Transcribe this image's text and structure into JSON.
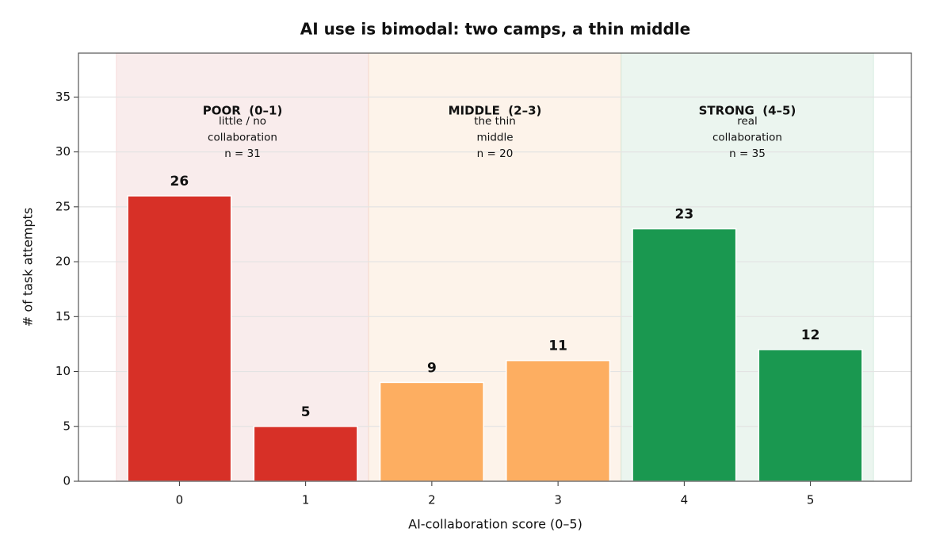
{
  "chart_data": {
    "type": "bar",
    "title": "AI use is bimodal: two camps, a thin middle",
    "xlabel": "AI-collaboration score (0–5)",
    "ylabel": "# of task attempts",
    "x": [
      0,
      1,
      2,
      3,
      4,
      5
    ],
    "values": [
      26,
      5,
      9,
      11,
      23,
      12
    ],
    "colors": [
      "#d73027",
      "#d73027",
      "#fdae61",
      "#fdae61",
      "#1a9850",
      "#1a9850"
    ],
    "xlim": [
      -0.8,
      5.8
    ],
    "xticks": [
      0,
      1,
      2,
      3,
      4,
      5
    ],
    "ylim": [
      0,
      39
    ],
    "yticks": [
      0,
      5,
      10,
      15,
      20,
      25,
      30,
      35
    ],
    "grid": true,
    "bands": [
      {
        "range": [
          -0.5,
          1.5
        ],
        "label": "POOR  (0–1)",
        "note": [
          "little / no",
          "collaboration",
          "n = 31"
        ],
        "color": "#d73027",
        "fill": "#f9ecec"
      },
      {
        "range": [
          1.5,
          3.5
        ],
        "label": "MIDDLE  (2–3)",
        "note": [
          "the thin",
          "middle",
          "n = 20"
        ],
        "color": "#e8871e",
        "fill": "#fdf3ea"
      },
      {
        "range": [
          3.5,
          5.5
        ],
        "label": "STRONG  (4–5)",
        "note": [
          "real",
          "collaboration",
          "n = 35"
        ],
        "color": "#1a9850",
        "fill": "#ebf5ef"
      }
    ]
  }
}
